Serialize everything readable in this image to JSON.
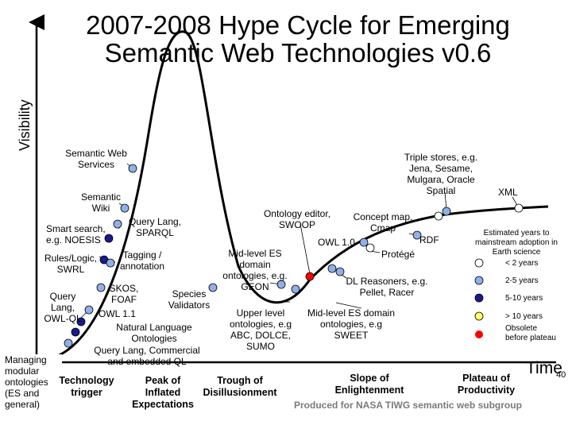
{
  "title": "2007-2008 Hype Cycle for Emerging Semantic Web Technologies v0.6",
  "y_axis_label": "Visibility",
  "x_axis_label": "Time",
  "page_number": "40",
  "phases": {
    "trigger": "Technology trigger",
    "peak": "Peak of Inflated Expectations",
    "trough": "Trough of Disillusionment",
    "slope": "Slope of Enlightenment",
    "plateau": "Plateau of Productivity"
  },
  "technologies": {
    "semantic_web_services": "Semantic Web Services",
    "semantic_wiki": "Semantic Wiki",
    "smart_search": "Smart search, e.g. NOESIS",
    "query_lang_sparql": "Query Lang, SPARQL",
    "rules_logic": "Rules/Logic, SWRL",
    "tagging": "Tagging / annotation",
    "query_lang_owl_ql": "Query Lang, OWL-QL",
    "skos_foaf": "SKOS, FOAF",
    "species_validators": "Species Validators",
    "owl_11": "OWL 1.1",
    "natural_language": "Natural Language Ontologies",
    "query_lang_commercial": "Query Lang, Commercial and embedded QL",
    "managing_modular": "Managing modular ontologies (ES and general)",
    "mid_level_es": "Mid-level ES domain ontologies, e.g. GEON",
    "upper_level": "Upper level ontologies, e.g ABC, DOLCE, SUMO",
    "ontology_editor": "Ontology editor, SWOOP",
    "owl_10": "OWL 1.0",
    "concept_map": "Concept map, Cmap",
    "protege": "Protégé",
    "dl_reasoners": "DL Reasoners, e.g. Pellet, Racer",
    "mid_level_sweet": "Mid-level ES domain ontologies, e.g SWEET",
    "rdf": "RDF",
    "triple_stores": "Triple stores, e.g. Jena, Sesame, Mulgara, Oracle Spatial",
    "xml": "XML"
  },
  "legend": {
    "heading": "Estimated years to mainstream adoption in Earth science",
    "items": [
      {
        "label": "< 2 years",
        "color": "#ffffff"
      },
      {
        "label": "2-5 years",
        "color": "#8fb0e8"
      },
      {
        "label": "5-10 years",
        "color": "#1a1a8c"
      },
      {
        "label": "> 10 years",
        "color": "#ffff66"
      },
      {
        "label": "Obsolete before plateau",
        "color": "#ff0000"
      }
    ]
  },
  "credit": "Produced for NASA TIWG semantic web subgroup",
  "colors": {
    "curve": "#000000",
    "dot_default": "#8fb0e8",
    "dot_white": "#ffffff",
    "dot_navy": "#1a1a8c",
    "dot_red": "#ff0000"
  }
}
